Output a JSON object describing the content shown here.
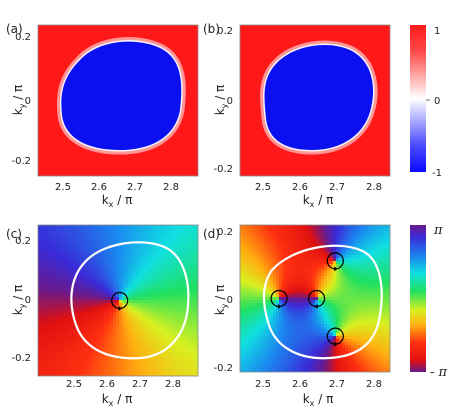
{
  "chart_data": [
    {
      "type": "heatmap",
      "panel_label": "(a)",
      "xlabel": "k",
      "xlabel_sub": "x",
      "xlabel_suffix": " / π",
      "ylabel": "k",
      "ylabel_sub": "y",
      "ylabel_suffix": " / π",
      "xlim": [
        2.42,
        2.9
      ],
      "ylim": [
        -0.245,
        0.245
      ],
      "xticks": [
        "2.5",
        "2.6",
        "2.7",
        "2.8"
      ],
      "yticks": [
        "0.2",
        "0",
        "-0.2"
      ],
      "region": "blue-triangle",
      "center": [
        2.67,
        0.0
      ],
      "inside_value": -1,
      "outside_value": 1
    },
    {
      "type": "heatmap",
      "panel_label": "(b)",
      "xlabel": "k",
      "xlabel_sub": "x",
      "xlabel_suffix": " / π",
      "ylabel": "k",
      "ylabel_sub": "y",
      "ylabel_suffix": " / π",
      "xlim": [
        2.42,
        2.9
      ],
      "ylim": [
        -0.205,
        0.205
      ],
      "xticks": [
        "2.5",
        "2.6",
        "2.7",
        "2.8"
      ],
      "yticks": [
        "0.2",
        "0",
        "-0.2"
      ],
      "region": "blue-triangle",
      "center": [
        2.67,
        0.0
      ],
      "inside_value": -1,
      "outside_value": 1
    },
    {
      "type": "heatmap",
      "panel_label": "(c)",
      "xlabel": "k",
      "xlabel_sub": "x",
      "xlabel_suffix": " / π",
      "ylabel": "k",
      "ylabel_sub": "y",
      "ylabel_suffix": " / π",
      "xlim": [
        2.42,
        2.9
      ],
      "ylim": [
        -0.245,
        0.245
      ],
      "xticks": [
        "2.5",
        "2.6",
        "2.7",
        "2.8"
      ],
      "yticks": [
        "0.2",
        "0",
        "-0.2"
      ],
      "vortices": [
        {
          "x": 2.665,
          "y": 0.0,
          "charge": 1
        }
      ]
    },
    {
      "type": "heatmap",
      "panel_label": "(d)",
      "xlabel": "k",
      "xlabel_sub": "x",
      "xlabel_suffix": " / π",
      "ylabel": "k",
      "ylabel_sub": "y",
      "ylabel_suffix": " / π",
      "xlim": [
        2.42,
        2.9
      ],
      "ylim": [
        -0.205,
        0.205
      ],
      "xticks": [
        "2.5",
        "2.6",
        "2.7",
        "2.8"
      ],
      "yticks": [
        "0.2",
        "0",
        "-0.2"
      ],
      "vortices": [
        {
          "x": 2.545,
          "y": 0.0,
          "charge": 1
        },
        {
          "x": 2.665,
          "y": 0.0,
          "charge": -1
        },
        {
          "x": 2.725,
          "y": 0.105,
          "charge": 1
        },
        {
          "x": 2.725,
          "y": -0.105,
          "charge": 1
        }
      ]
    }
  ],
  "colorbars": [
    {
      "type": "diverging",
      "ticks": [
        "1",
        "0",
        "-1"
      ],
      "top_color": "#ff2020",
      "mid_color": "#ffffff",
      "bottom_color": "#1010ff"
    },
    {
      "type": "phase",
      "ticks": [
        "π",
        "- π"
      ]
    }
  ]
}
